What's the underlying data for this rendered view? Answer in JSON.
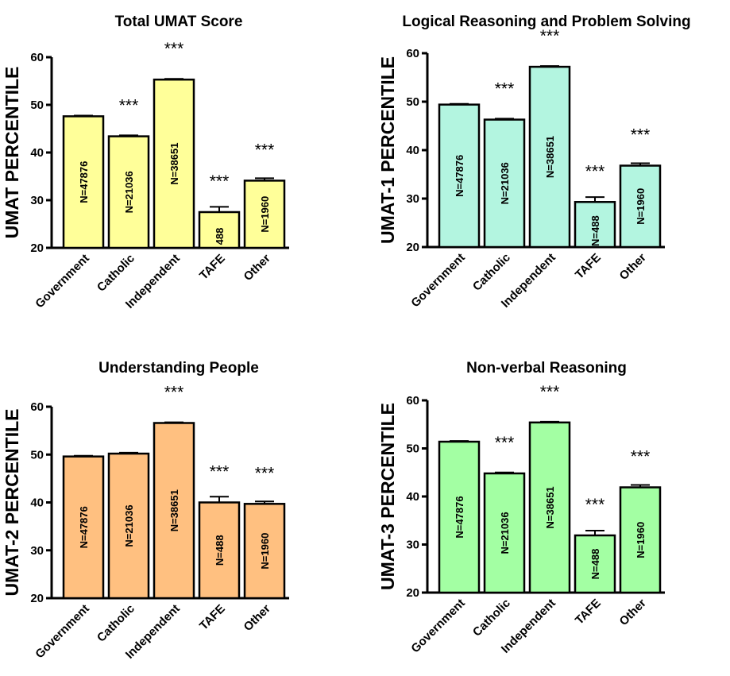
{
  "categories": [
    "Government",
    "Catholic",
    "Independent",
    "TAFE",
    "Other"
  ],
  "chart_data": [
    {
      "type": "bar",
      "title": "Total UMAT Score",
      "ylabel": "UMAT PERCENTILE",
      "ylim": [
        20,
        60
      ],
      "yticks": [
        20,
        30,
        40,
        50,
        60
      ],
      "color": "#ffff99",
      "values": [
        47.6,
        43.4,
        55.3,
        27.5,
        34.1
      ],
      "errors": [
        0.15,
        0.2,
        0.15,
        1.1,
        0.5
      ],
      "n_labels": [
        "N=47876",
        "N=21036",
        "N=38651",
        "488",
        "N=1960"
      ],
      "significance": [
        "",
        "***",
        "***",
        "***",
        "***"
      ]
    },
    {
      "type": "bar",
      "title": "Logical Reasoning and Problem Solving",
      "ylabel": "UMAT-1 PERCENTILE",
      "ylim": [
        20,
        60
      ],
      "yticks": [
        20,
        30,
        40,
        50,
        60
      ],
      "color": "#b3f5e0",
      "values": [
        49.4,
        46.3,
        57.2,
        29.3,
        36.8
      ],
      "errors": [
        0.15,
        0.2,
        0.15,
        1.0,
        0.5
      ],
      "n_labels": [
        "N=47876",
        "N=21036",
        "N=38651",
        "N=488",
        "N=1960"
      ],
      "significance": [
        "",
        "***",
        "***",
        "***",
        "***"
      ]
    },
    {
      "type": "bar",
      "title": "Understanding People",
      "ylabel": "UMAT-2 PERCENTILE",
      "ylim": [
        20,
        60
      ],
      "yticks": [
        20,
        30,
        40,
        50,
        60
      ],
      "color": "#ffc080",
      "values": [
        49.6,
        50.2,
        56.6,
        40.0,
        39.7
      ],
      "errors": [
        0.15,
        0.2,
        0.15,
        1.2,
        0.5
      ],
      "n_labels": [
        "N=47876",
        "N=21036",
        "N=38651",
        "N=488",
        "N=1960"
      ],
      "significance": [
        "",
        "",
        "***",
        "***",
        "***"
      ]
    },
    {
      "type": "bar",
      "title": "Non-verbal Reasoning",
      "ylabel": "UMAT-3 PERCENTILE",
      "ylim": [
        20,
        60
      ],
      "yticks": [
        20,
        30,
        40,
        50,
        60
      ],
      "color": "#a3ffa3",
      "values": [
        51.4,
        44.8,
        55.4,
        31.9,
        41.9
      ],
      "errors": [
        0.15,
        0.2,
        0.15,
        1.0,
        0.5
      ],
      "n_labels": [
        "N=47876",
        "N=21036",
        "N=38651",
        "N=488",
        "N=1960"
      ],
      "significance": [
        "",
        "***",
        "***",
        "***",
        "***"
      ]
    }
  ]
}
